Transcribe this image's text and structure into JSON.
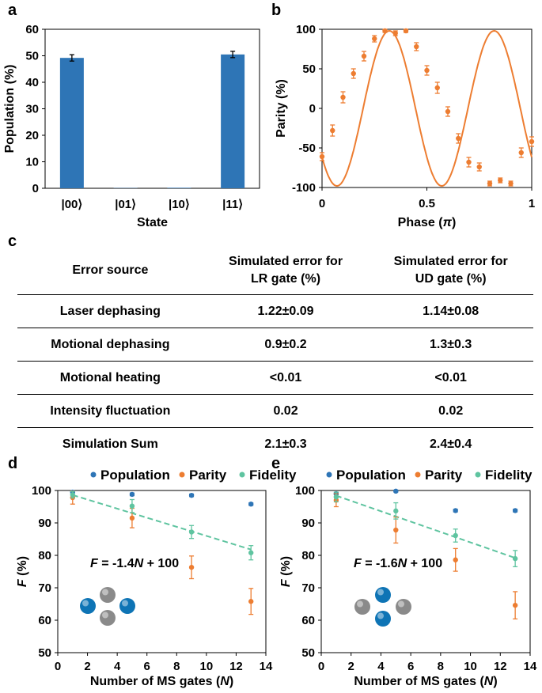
{
  "panels": {
    "a": "a",
    "b": "b",
    "c": "c",
    "d": "d",
    "e": "e"
  },
  "colors": {
    "population": "#2E75B6",
    "parity": "#ED7D31",
    "fidelity": "#5FC4A0",
    "fit": "#ED7D31",
    "ion_blue": "#0E74B5",
    "ion_gray": "#8A8A8A"
  },
  "table": {
    "headers": {
      "source": "Error source",
      "lr_line1": "Simulated error for",
      "lr_line2": "LR gate (%)",
      "ud_line1": "Simulated error for",
      "ud_line2": "UD gate (%)"
    },
    "rows": [
      {
        "source": "Laser dephasing",
        "lr": "1.22±0.09",
        "ud": "1.14±0.08"
      },
      {
        "source": "Motional dephasing",
        "lr": "0.9±0.2",
        "ud": "1.3±0.3"
      },
      {
        "source": "Motional heating",
        "lr": "<0.01",
        "ud": "<0.01"
      },
      {
        "source": "Intensity fluctuation",
        "lr": "0.02",
        "ud": "0.02"
      },
      {
        "source": "Simulation Sum",
        "lr": "2.1±0.3",
        "ud": "2.4±0.4"
      }
    ]
  },
  "chart_data": [
    {
      "id": "a",
      "type": "bar",
      "xlabel": "State",
      "ylabel": "Population (%)",
      "ylim": [
        0,
        60
      ],
      "yticks": [
        0,
        10,
        20,
        30,
        40,
        50,
        60
      ],
      "categories": [
        "|00⟩",
        "|01⟩",
        "|10⟩",
        "|11⟩"
      ],
      "values": [
        49.2,
        0.1,
        0.2,
        50.5
      ],
      "errors": [
        1.2,
        0,
        0,
        1.2
      ]
    },
    {
      "id": "b",
      "type": "scatter",
      "xlabel_prefix": "Phase (",
      "xlabel_symbol": "π",
      "xlabel_suffix": ")",
      "ylabel": "Parity (%)",
      "xlim": [
        0,
        1
      ],
      "ylim": [
        -100,
        100
      ],
      "xticks": [
        0,
        0.5,
        1
      ],
      "yticks": [
        -100,
        -50,
        0,
        50,
        100
      ],
      "x": [
        0,
        0.05,
        0.1,
        0.15,
        0.2,
        0.25,
        0.3,
        0.35,
        0.4,
        0.45,
        0.5,
        0.55,
        0.6,
        0.65,
        0.7,
        0.75,
        0.8,
        0.85,
        0.9,
        0.95,
        1.0
      ],
      "y": [
        -61,
        -28,
        14,
        44,
        66,
        88,
        98,
        95,
        98,
        78,
        48,
        26,
        -4,
        -38,
        -68,
        -74,
        -95,
        -91,
        -95,
        -56,
        -42
      ],
      "yerr": [
        5,
        7,
        7,
        6,
        6,
        4,
        2,
        3,
        2,
        5,
        6,
        7,
        6,
        6,
        6,
        5,
        3,
        3,
        3,
        6,
        6
      ],
      "fit": {
        "amplitude": 98,
        "offset": 0,
        "cycles_per_pi": 2,
        "phase_deg": -141
      }
    },
    {
      "id": "d",
      "type": "scatter",
      "xlabel_prefix": "Number of MS gates (",
      "xlabel_symbol": "N",
      "xlabel_suffix": ")",
      "ylabel_symbol": "F",
      "ylabel_suffix": " (%)",
      "xlim": [
        0,
        14
      ],
      "ylim": [
        50,
        100
      ],
      "xticks": [
        0,
        2,
        4,
        6,
        8,
        10,
        12,
        14
      ],
      "yticks": [
        50,
        60,
        70,
        80,
        90,
        100
      ],
      "legend": [
        "Population",
        "Parity",
        "Fidelity"
      ],
      "series": [
        {
          "name": "Population",
          "x": [
            1,
            5,
            9,
            13
          ],
          "y": [
            99.5,
            98.8,
            98.5,
            95.8
          ],
          "err": [
            0.3,
            0.4,
            0.4,
            0.4
          ]
        },
        {
          "name": "Parity",
          "x": [
            1,
            5,
            9,
            13
          ],
          "y": [
            97.8,
            91.5,
            76.3,
            65.8
          ],
          "err": [
            2.0,
            3.0,
            3.5,
            4.0
          ]
        },
        {
          "name": "Fidelity",
          "x": [
            1,
            5,
            9,
            13
          ],
          "y": [
            98.7,
            95.2,
            87.2,
            80.8
          ],
          "err": [
            1.0,
            2.0,
            2.0,
            2.2
          ]
        }
      ],
      "fit_line": {
        "slope": -1.4,
        "intercept": 100
      },
      "equation": {
        "var": "F",
        "mid": " = -1.4",
        "n": "N",
        "tail": " + 100"
      }
    },
    {
      "id": "e",
      "type": "scatter",
      "xlabel_prefix": "Number of MS gates (",
      "xlabel_symbol": "N",
      "xlabel_suffix": ")",
      "ylabel_symbol": "F",
      "ylabel_suffix": " (%)",
      "xlim": [
        0,
        14
      ],
      "ylim": [
        50,
        100
      ],
      "xticks": [
        0,
        2,
        4,
        6,
        8,
        10,
        12,
        14
      ],
      "yticks": [
        50,
        60,
        70,
        80,
        90,
        100
      ],
      "legend": [
        "Population",
        "Parity",
        "Fidelity"
      ],
      "series": [
        {
          "name": "Population",
          "x": [
            1,
            5,
            9,
            13
          ],
          "y": [
            99.0,
            99.8,
            93.8,
            93.8
          ],
          "err": [
            0.3,
            0.3,
            0.4,
            0.4
          ]
        },
        {
          "name": "Parity",
          "x": [
            1,
            5,
            9,
            13
          ],
          "y": [
            97.0,
            87.8,
            78.6,
            64.6
          ],
          "err": [
            2.0,
            4.0,
            3.5,
            4.2
          ]
        },
        {
          "name": "Fidelity",
          "x": [
            1,
            5,
            9,
            13
          ],
          "y": [
            98.0,
            93.7,
            86.1,
            79.0
          ],
          "err": [
            1.5,
            2.5,
            2.0,
            2.5
          ]
        }
      ],
      "fit_line": {
        "slope": -1.6,
        "intercept": 100
      },
      "equation": {
        "var": "F",
        "mid": " = -1.6",
        "n": "N",
        "tail": " + 100"
      }
    }
  ]
}
